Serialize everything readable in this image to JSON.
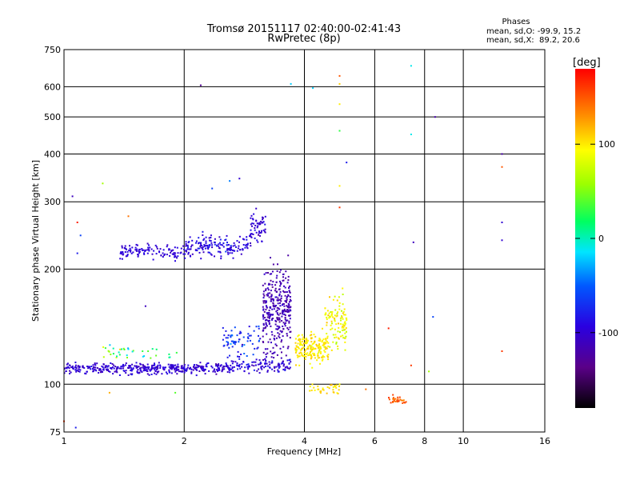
{
  "chart_data": {
    "type": "scatter",
    "title": "Tromsø 20151117 02:40:00-02:41:43",
    "subtitle": "RwPretec (8p)",
    "xlabel": "Frequency [MHz]",
    "ylabel": "Stationary phase Virtual Height [km]",
    "x_scale": "log",
    "y_scale": "log",
    "xlim": [
      1,
      16
    ],
    "ylim": [
      75,
      750
    ],
    "x_ticks": [
      1,
      2,
      4,
      6,
      8,
      10,
      16
    ],
    "y_ticks": [
      75,
      100,
      200,
      300,
      400,
      500,
      600,
      750
    ],
    "grid": true,
    "phase_stats": {
      "heading": "Phases",
      "line_o": "mean, sd,O: -99.9, 15.2",
      "line_x": "mean, sd,X:  89.2, 20.6"
    },
    "colorbar": {
      "label": "[deg]",
      "range": [
        -180,
        180
      ],
      "tick_labels": [
        "100",
        "0",
        "-100"
      ],
      "tick_values": [
        100,
        0,
        -100
      ]
    },
    "clusters": [
      {
        "x_range": [
          1.0,
          2.6
        ],
        "y_center": 110,
        "y_spread": 2.5,
        "phase": -100,
        "phase_sd": 12,
        "count": 420
      },
      {
        "x_range": [
          2.6,
          3.7
        ],
        "y_center": 112,
        "y_spread": 3.0,
        "phase": -95,
        "phase_sd": 15,
        "count": 110
      },
      {
        "x_range": [
          1.25,
          1.95
        ],
        "y_center": 122,
        "y_spread": 4.0,
        "phase": 20,
        "phase_sd": 45,
        "count": 35
      },
      {
        "x_range": [
          1.38,
          2.0
        ],
        "y_center": 222,
        "y_spread": 7.0,
        "phase": -98,
        "phase_sd": 8,
        "count": 110
      },
      {
        "x_range": [
          2.0,
          2.9
        ],
        "y_center": 230,
        "y_spread": 10.0,
        "phase": -92,
        "phase_sd": 15,
        "count": 160
      },
      {
        "x_range": [
          2.9,
          3.2
        ],
        "y_center": 255,
        "y_spread": 20.0,
        "phase": -100,
        "phase_sd": 12,
        "count": 60
      },
      {
        "x_range": [
          3.15,
          3.7
        ],
        "y_center": 155,
        "y_spread": 30.0,
        "phase": -115,
        "phase_sd": 12,
        "count": 340
      },
      {
        "x_range": [
          2.5,
          3.1
        ],
        "y_center": 130,
        "y_spread": 10.0,
        "phase": -70,
        "phase_sd": 22,
        "count": 70
      },
      {
        "x_range": [
          3.8,
          4.6
        ],
        "y_center": 125,
        "y_spread": 8.0,
        "phase": 100,
        "phase_sd": 12,
        "count": 190
      },
      {
        "x_range": [
          4.5,
          5.1
        ],
        "y_center": 148,
        "y_spread": 16.0,
        "phase": 90,
        "phase_sd": 18,
        "count": 110
      },
      {
        "x_range": [
          4.1,
          4.9
        ],
        "y_center": 97,
        "y_spread": 2.0,
        "phase": 105,
        "phase_sd": 10,
        "count": 35
      },
      {
        "x_range": [
          6.5,
          7.2
        ],
        "y_center": 91,
        "y_spread": 1.5,
        "phase": 150,
        "phase_sd": 12,
        "count": 30
      }
    ],
    "isolated_points": [
      {
        "x": 4.9,
        "y": 640,
        "phase": 150
      },
      {
        "x": 4.9,
        "y": 610,
        "phase": 110
      },
      {
        "x": 4.9,
        "y": 540,
        "phase": 100
      },
      {
        "x": 4.9,
        "y": 460,
        "phase": 30
      },
      {
        "x": 4.9,
        "y": 330,
        "phase": 100
      },
      {
        "x": 4.9,
        "y": 290,
        "phase": 160
      },
      {
        "x": 5.1,
        "y": 380,
        "phase": -80
      },
      {
        "x": 7.4,
        "y": 680,
        "phase": -10
      },
      {
        "x": 7.4,
        "y": 450,
        "phase": -10
      },
      {
        "x": 8.5,
        "y": 500,
        "phase": -120
      },
      {
        "x": 12.5,
        "y": 400,
        "phase": -120
      },
      {
        "x": 12.5,
        "y": 370,
        "phase": 150
      },
      {
        "x": 12.5,
        "y": 265,
        "phase": -100
      },
      {
        "x": 12.5,
        "y": 238,
        "phase": -100
      },
      {
        "x": 12.5,
        "y": 122,
        "phase": 160
      },
      {
        "x": 7.5,
        "y": 235,
        "phase": -110
      },
      {
        "x": 8.4,
        "y": 150,
        "phase": -60
      },
      {
        "x": 8.2,
        "y": 108,
        "phase": 60
      },
      {
        "x": 7.4,
        "y": 112,
        "phase": 160
      },
      {
        "x": 6.5,
        "y": 140,
        "phase": 170
      },
      {
        "x": 1.05,
        "y": 310,
        "phase": -110
      },
      {
        "x": 1.08,
        "y": 265,
        "phase": 170
      },
      {
        "x": 1.1,
        "y": 245,
        "phase": -60
      },
      {
        "x": 1.08,
        "y": 220,
        "phase": -80
      },
      {
        "x": 1.25,
        "y": 335,
        "phase": 60
      },
      {
        "x": 1.45,
        "y": 275,
        "phase": 140
      },
      {
        "x": 2.2,
        "y": 605,
        "phase": -130
      },
      {
        "x": 3.7,
        "y": 610,
        "phase": -20
      },
      {
        "x": 4.2,
        "y": 595,
        "phase": -20
      },
      {
        "x": 2.75,
        "y": 345,
        "phase": -100
      },
      {
        "x": 2.6,
        "y": 340,
        "phase": -40
      },
      {
        "x": 2.35,
        "y": 325,
        "phase": -60
      },
      {
        "x": 1.6,
        "y": 160,
        "phase": -110
      },
      {
        "x": 1.0,
        "y": 80,
        "phase": 160
      },
      {
        "x": 1.07,
        "y": 77,
        "phase": -80
      },
      {
        "x": 1.3,
        "y": 95,
        "phase": 120
      },
      {
        "x": 1.9,
        "y": 95,
        "phase": 40
      },
      {
        "x": 5.7,
        "y": 97,
        "phase": 140
      }
    ]
  }
}
